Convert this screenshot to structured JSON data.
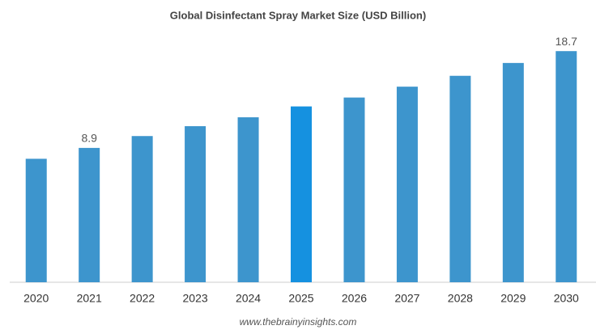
{
  "chart_data": {
    "type": "bar",
    "title": "Global Disinfectant Spray Market Size (USD Billion)",
    "categories": [
      "2020",
      "2021",
      "2022",
      "2023",
      "2024",
      "2025",
      "2026",
      "2027",
      "2028",
      "2029",
      "2030"
    ],
    "values": [
      7.8,
      8.9,
      10.1,
      11.1,
      12.0,
      13.1,
      14.0,
      15.1,
      16.2,
      17.5,
      18.7
    ],
    "value_labels": [
      null,
      "8.9",
      null,
      null,
      null,
      null,
      null,
      null,
      null,
      null,
      "18.7"
    ],
    "colors": [
      "#3d95cd",
      "#3d95cd",
      "#3d95cd",
      "#3d95cd",
      "#3d95cd",
      "#1591e0",
      "#3d95cd",
      "#3d95cd",
      "#3d95cd",
      "#3d95cd",
      "#3d95cd"
    ],
    "ylim": [
      -4.7,
      20.6
    ],
    "source": "www.thebrainyinsights.com"
  }
}
